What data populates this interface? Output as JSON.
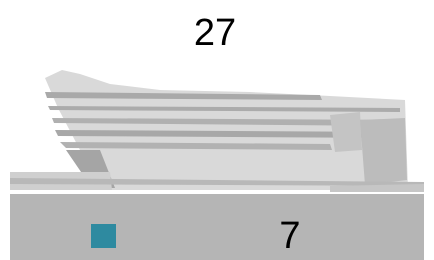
{
  "hud": {
    "score": 27,
    "counter": 7
  }
}
